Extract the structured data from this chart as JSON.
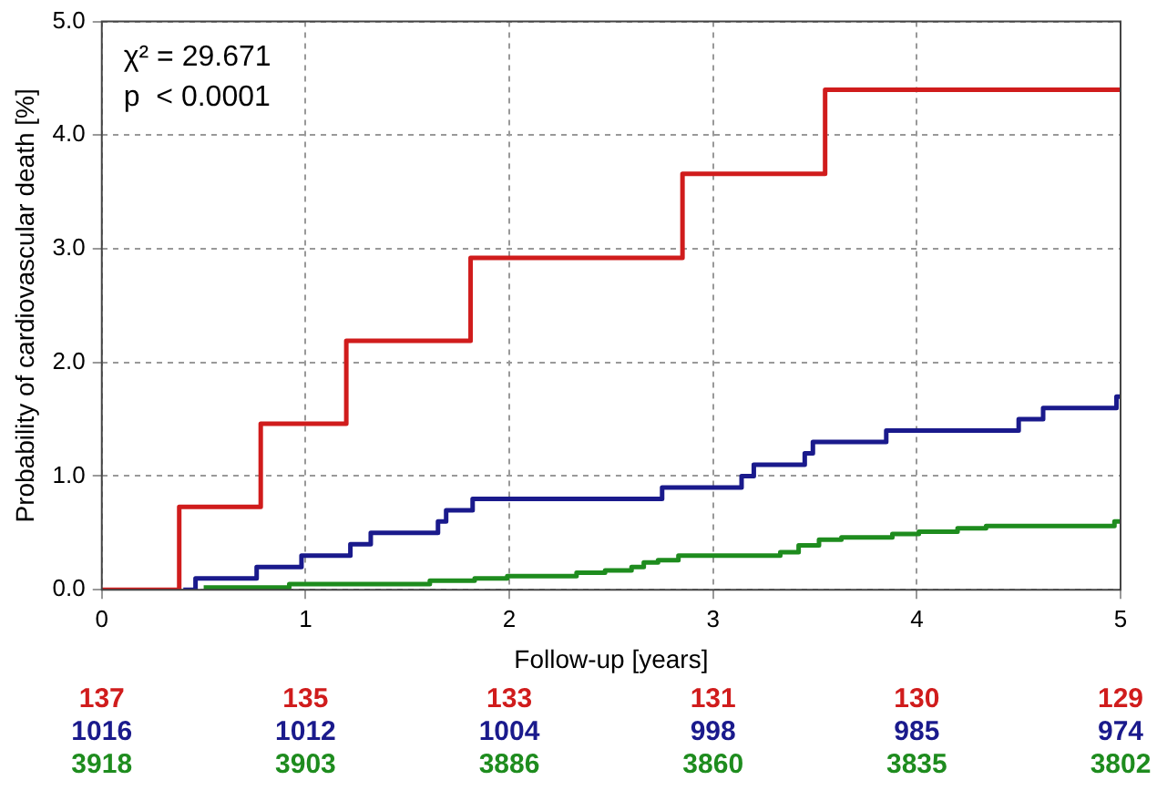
{
  "chart_data": {
    "type": "step",
    "xlabel": "Follow-up [years]",
    "ylabel": "Probability of cardiovascular death [%]",
    "xlim": [
      0,
      5
    ],
    "xticks": [
      0,
      1,
      2,
      3,
      4,
      5
    ],
    "ylim": [
      0,
      5
    ],
    "yticks": [
      {
        "value": 0,
        "label": "0.0"
      },
      {
        "value": 1,
        "label": "1.0"
      },
      {
        "value": 2,
        "label": "2.0"
      },
      {
        "value": 3,
        "label": "3.0"
      },
      {
        "value": 4,
        "label": "4.0"
      },
      {
        "value": 5,
        "label": "5.0"
      }
    ],
    "grid": true,
    "legend": false,
    "marker": "none",
    "line_style": "solid",
    "series": [
      {
        "color": "#d01c1c",
        "x": [
          0,
          0.38,
          0.78,
          1.2,
          1.81,
          2.85,
          3.55,
          5
        ],
        "values": [
          0,
          0.73,
          1.46,
          2.19,
          2.92,
          3.66,
          4.4,
          4.4
        ]
      },
      {
        "color": "#1a1a8c",
        "x": [
          0.4,
          0.46,
          0.76,
          0.98,
          1.22,
          1.32,
          1.65,
          1.69,
          1.82,
          2.75,
          3.14,
          3.2,
          3.45,
          3.49,
          3.85,
          4.5,
          4.62,
          4.98,
          5
        ],
        "values": [
          0,
          0.1,
          0.2,
          0.3,
          0.4,
          0.5,
          0.6,
          0.7,
          0.8,
          0.9,
          1.0,
          1.1,
          1.2,
          1.3,
          1.4,
          1.5,
          1.6,
          1.7,
          1.7
        ]
      },
      {
        "color": "#1e8c1e",
        "x": [
          0.5,
          0.92,
          1.61,
          1.83,
          1.99,
          2.33,
          2.47,
          2.6,
          2.66,
          2.73,
          2.83,
          3.33,
          3.42,
          3.52,
          3.63,
          3.88,
          4.01,
          4.2,
          4.34,
          4.97,
          5
        ],
        "values": [
          0.02,
          0.05,
          0.08,
          0.1,
          0.12,
          0.15,
          0.17,
          0.2,
          0.24,
          0.26,
          0.3,
          0.33,
          0.39,
          0.44,
          0.46,
          0.49,
          0.51,
          0.54,
          0.56,
          0.6,
          0.62
        ]
      }
    ],
    "annotations": [
      "χ² = 29.671",
      "p  < 0.0001",
      "137",
      "1016",
      "3918",
      "135",
      "1012",
      "3903",
      "133",
      "1004",
      "3886",
      "131",
      "998",
      "3860",
      "130",
      "985",
      "3835",
      "129",
      "974",
      "3802"
    ]
  }
}
